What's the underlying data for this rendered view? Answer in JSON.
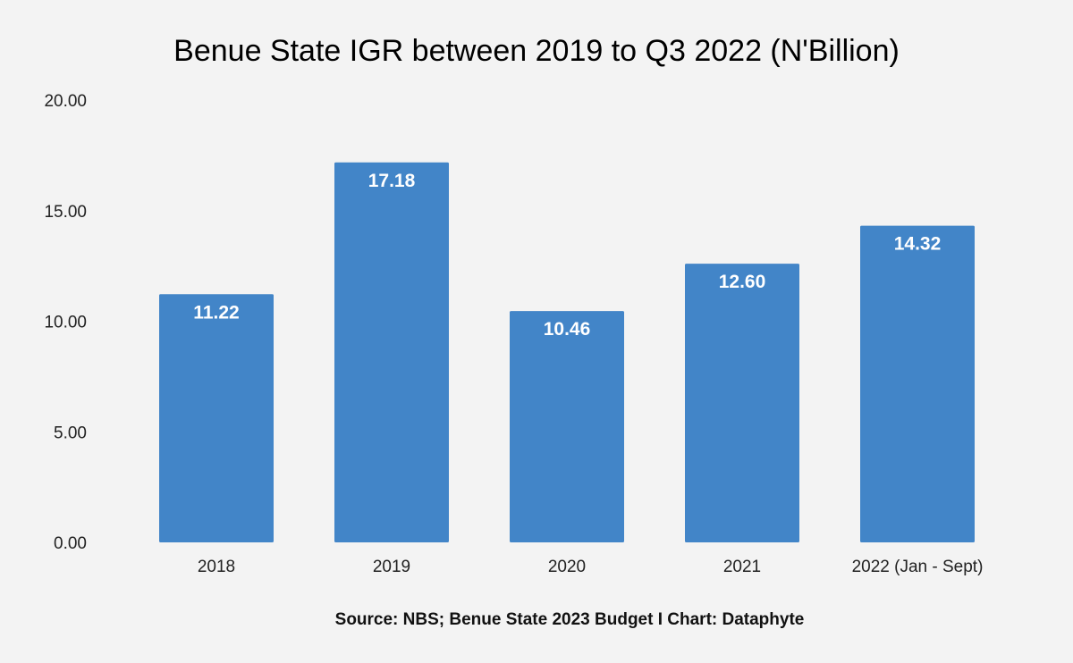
{
  "chart_data": {
    "type": "bar",
    "title": "Benue State IGR between 2019 to Q3 2022 (N'Billion)",
    "categories": [
      "2018",
      "2019",
      "2020",
      "2021",
      "2022 (Jan - Sept)"
    ],
    "values": [
      11.22,
      17.18,
      10.46,
      12.6,
      14.32
    ],
    "value_labels": [
      "11.22",
      "17.18",
      "10.46",
      "12.60",
      "14.32"
    ],
    "ylim": [
      0,
      20
    ],
    "yticks": [
      "0.00",
      "5.00",
      "10.00",
      "15.00",
      "20.00"
    ],
    "ytick_values": [
      0,
      5,
      10,
      15,
      20
    ],
    "xlabel": "",
    "ylabel": "",
    "grid": false,
    "bar_color": "#4285c8",
    "source": "Source: NBS; Benue State 2023 Budget I Chart: Dataphyte"
  }
}
